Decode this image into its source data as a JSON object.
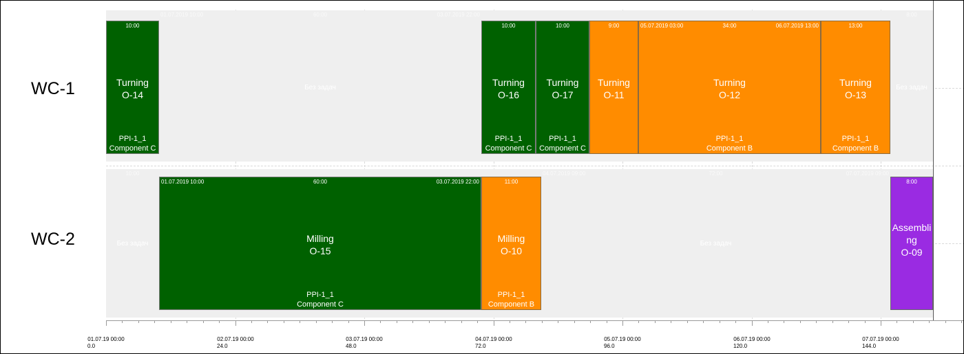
{
  "rows": [
    {
      "label": "WC-1"
    },
    {
      "label": "WC-2"
    }
  ],
  "wc1": {
    "o14": {
      "duration": "10:00",
      "operation": "Turning",
      "id": "O-14",
      "order": "PPI-1_1",
      "component": "Component C"
    },
    "idle1": {
      "start": "01.07.2019 10:00",
      "duration": "60:00",
      "end": "03.07.2019 22:00",
      "text": "Без задач"
    },
    "o16": {
      "duration": "10:00",
      "operation": "Turning",
      "id": "O-16",
      "order": "PPI-1_1",
      "component": "Component C"
    },
    "o17": {
      "duration": "10:00",
      "operation": "Turning",
      "id": "O-17",
      "order": "PPI-1_1",
      "component": "Component C"
    },
    "o11": {
      "duration": "9:00",
      "operation": "Turning",
      "id": "O-11"
    },
    "o12": {
      "start": "05.07.2019 03:00",
      "duration": "34:00",
      "end": "06.07.2019 13:00",
      "operation": "Turning",
      "id": "O-12",
      "order": "PPI-1_1",
      "component": "Component B"
    },
    "o13": {
      "duration": "13:00",
      "operation": "Turning",
      "id": "O-13",
      "order": "PPI-1_1",
      "component": "Component B"
    },
    "idle2": {
      "duration": "8:00",
      "text": "Без задач"
    }
  },
  "wc2": {
    "idle1": {
      "duration": "10:00",
      "text": "Без задач"
    },
    "o15": {
      "start": "01.07.2019 10:00",
      "duration": "60:00",
      "end": "03.07.2019 22:00",
      "operation": "Milling",
      "id": "O-15",
      "order": "PPI-1_1",
      "component": "Component C"
    },
    "o10": {
      "duration": "11:00",
      "operation": "Milling",
      "id": "O-10",
      "order": "PPI-1_1",
      "component": "Component B"
    },
    "idle2": {
      "start": "04.07.2019 09:00",
      "duration": "72:00",
      "end": "07.07.2019 09:00",
      "text": "Без задач"
    },
    "o09": {
      "duration": "8:00",
      "operation_line1": "Assembli",
      "operation_line2": "ng",
      "id": "O-09"
    }
  },
  "axis": {
    "ticks": [
      {
        "date": "01.07.19 00:00",
        "hours": "0.0"
      },
      {
        "date": "02.07.19 00:00",
        "hours": "24.0"
      },
      {
        "date": "03.07.19 00:00",
        "hours": "48.0"
      },
      {
        "date": "04.07.19 00:00",
        "hours": "72.0"
      },
      {
        "date": "05.07.19 00:00",
        "hours": "96.0"
      },
      {
        "date": "06.07.19 00:00",
        "hours": "120.0"
      },
      {
        "date": "07.07.19 00:00",
        "hours": "144.0"
      }
    ]
  },
  "colors": {
    "in_progress": "#006100",
    "planned": "#ff8c00",
    "assembly": "#9a2be2",
    "idle": "#efefef"
  }
}
